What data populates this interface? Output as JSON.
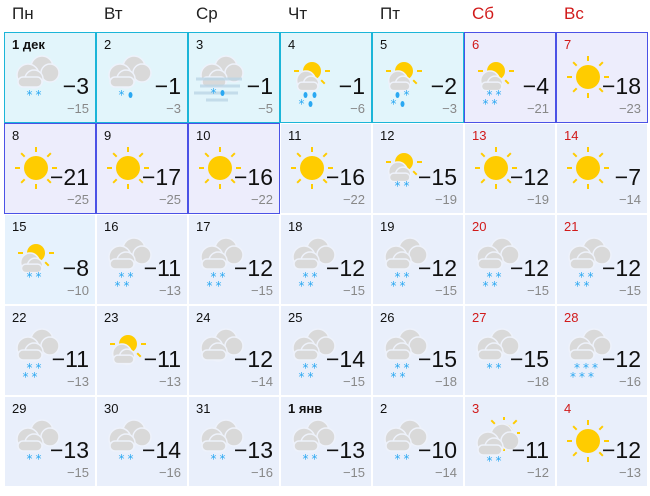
{
  "weekdays": [
    {
      "label": "Пн",
      "weekend": false
    },
    {
      "label": "Вт",
      "weekend": false
    },
    {
      "label": "Ср",
      "weekend": false
    },
    {
      "label": "Чт",
      "weekend": false
    },
    {
      "label": "Пт",
      "weekend": false
    },
    {
      "label": "Сб",
      "weekend": true
    },
    {
      "label": "Вс",
      "weekend": true
    }
  ],
  "colors": {
    "weekend": "#d11a1a",
    "cyan_border": "#1bb5d8",
    "purple_border": "#4b52e6",
    "sun": "#ffcc00",
    "cloud": "#d9d9d9",
    "precip": "#2aa8f2"
  },
  "days": [
    {
      "date": "1 дек",
      "bold": true,
      "icon": "cloud",
      "precip": "**",
      "max": "−3",
      "min": "−15",
      "style": "cyan"
    },
    {
      "date": "2",
      "icon": "cloud",
      "precip": "*d",
      "max": "−1",
      "min": "−3",
      "style": "cyan"
    },
    {
      "date": "3",
      "icon": "fog",
      "precip": "*d",
      "max": "−1",
      "min": "−5",
      "style": "cyan"
    },
    {
      "date": "4",
      "icon": "partly",
      "precip": "dd|*d",
      "max": "−1",
      "min": "−6",
      "style": "cyan"
    },
    {
      "date": "5",
      "icon": "partly",
      "precip": "d*|*d",
      "max": "−2",
      "min": "−3",
      "style": "cyan"
    },
    {
      "date": "6",
      "weekend": true,
      "icon": "partly",
      "precip": "**|**",
      "max": "−4",
      "min": "−21",
      "style": "purple"
    },
    {
      "date": "7",
      "weekend": true,
      "icon": "sun",
      "precip": "",
      "max": "−18",
      "min": "−23",
      "style": "purple"
    },
    {
      "date": "8",
      "icon": "sun",
      "precip": "",
      "max": "−21",
      "min": "−25",
      "style": "purple"
    },
    {
      "date": "9",
      "icon": "sun",
      "precip": "",
      "max": "−17",
      "min": "−25",
      "style": "purple"
    },
    {
      "date": "10",
      "icon": "sun",
      "precip": "",
      "max": "−16",
      "min": "−22",
      "style": "purple"
    },
    {
      "date": "11",
      "icon": "sun",
      "precip": "",
      "max": "−16",
      "min": "−22",
      "style": ""
    },
    {
      "date": "12",
      "icon": "partly",
      "precip": "**",
      "max": "−15",
      "min": "−19",
      "style": ""
    },
    {
      "date": "13",
      "weekend": true,
      "icon": "sun",
      "precip": "",
      "max": "−12",
      "min": "−19",
      "style": ""
    },
    {
      "date": "14",
      "weekend": true,
      "icon": "sun",
      "precip": "",
      "max": "−7",
      "min": "−14",
      "style": ""
    },
    {
      "date": "15",
      "icon": "partly",
      "precip": "**",
      "max": "−8",
      "min": "−10",
      "style": "light"
    },
    {
      "date": "16",
      "icon": "cloud",
      "precip": "**|**",
      "max": "−11",
      "min": "−13",
      "style": ""
    },
    {
      "date": "17",
      "icon": "cloud",
      "precip": "**|**",
      "max": "−12",
      "min": "−15",
      "style": ""
    },
    {
      "date": "18",
      "icon": "cloud",
      "precip": "**|**",
      "max": "−12",
      "min": "−15",
      "style": ""
    },
    {
      "date": "19",
      "icon": "cloud",
      "precip": "**|**",
      "max": "−12",
      "min": "−15",
      "style": ""
    },
    {
      "date": "20",
      "weekend": true,
      "icon": "cloud",
      "precip": "**|**",
      "max": "−12",
      "min": "−15",
      "style": ""
    },
    {
      "date": "21",
      "weekend": true,
      "icon": "cloud",
      "precip": "**|**",
      "max": "−12",
      "min": "−15",
      "style": ""
    },
    {
      "date": "22",
      "icon": "cloud",
      "precip": "**|**",
      "max": "−11",
      "min": "−13",
      "style": ""
    },
    {
      "date": "23",
      "icon": "partly",
      "precip": "",
      "max": "−11",
      "min": "−13",
      "style": ""
    },
    {
      "date": "24",
      "icon": "cloud",
      "precip": "",
      "max": "−12",
      "min": "−14",
      "style": ""
    },
    {
      "date": "25",
      "icon": "cloud",
      "precip": "**|**",
      "max": "−14",
      "min": "−15",
      "style": ""
    },
    {
      "date": "26",
      "icon": "cloud",
      "precip": "**|**",
      "max": "−15",
      "min": "−18",
      "style": ""
    },
    {
      "date": "27",
      "weekend": true,
      "icon": "cloud",
      "precip": "**",
      "max": "−15",
      "min": "−18",
      "style": ""
    },
    {
      "date": "28",
      "weekend": true,
      "icon": "cloud",
      "precip": "***|***",
      "max": "−12",
      "min": "−16",
      "style": ""
    },
    {
      "date": "29",
      "icon": "cloud",
      "precip": "**",
      "max": "−13",
      "min": "−15",
      "style": ""
    },
    {
      "date": "30",
      "icon": "cloud",
      "precip": "**",
      "max": "−14",
      "min": "−16",
      "style": ""
    },
    {
      "date": "31",
      "icon": "cloud",
      "precip": "**",
      "max": "−13",
      "min": "−16",
      "style": ""
    },
    {
      "date": "1 янв",
      "bold": true,
      "icon": "cloud",
      "precip": "**",
      "max": "−13",
      "min": "−15",
      "style": ""
    },
    {
      "date": "2",
      "icon": "cloud",
      "precip": "**",
      "max": "−10",
      "min": "−14",
      "style": ""
    },
    {
      "date": "3",
      "weekend": true,
      "icon": "partly-right",
      "precip": "**",
      "max": "−11",
      "min": "−12",
      "style": ""
    },
    {
      "date": "4",
      "weekend": true,
      "icon": "sun",
      "precip": "",
      "max": "−12",
      "min": "−13",
      "style": ""
    }
  ]
}
